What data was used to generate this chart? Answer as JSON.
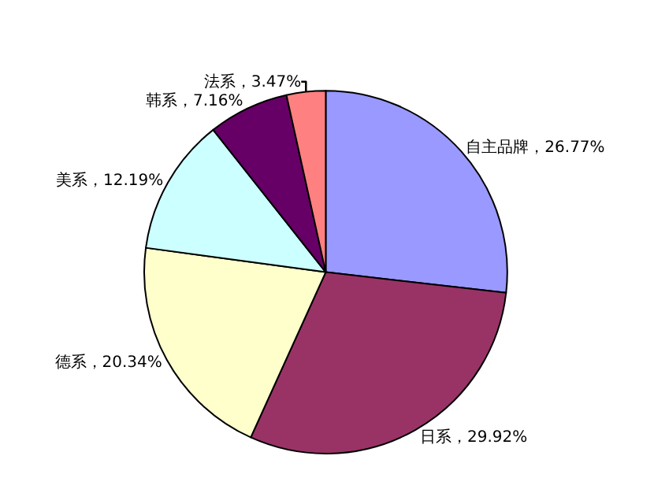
{
  "chart_data": {
    "type": "pie",
    "categories": [
      "自主品牌",
      "日系",
      "德系",
      "美系",
      "韩系",
      "法系"
    ],
    "values": [
      26.77,
      29.92,
      20.34,
      12.19,
      7.16,
      3.47
    ],
    "value_labels": [
      "26.77%",
      "29.92%",
      "20.34%",
      "12.19%",
      "7.16%",
      "3.47%"
    ],
    "colors": [
      "#9999ff",
      "#993366",
      "#ffffcc",
      "#ccffff",
      "#660066",
      "#ff8080"
    ],
    "legend": false
  }
}
